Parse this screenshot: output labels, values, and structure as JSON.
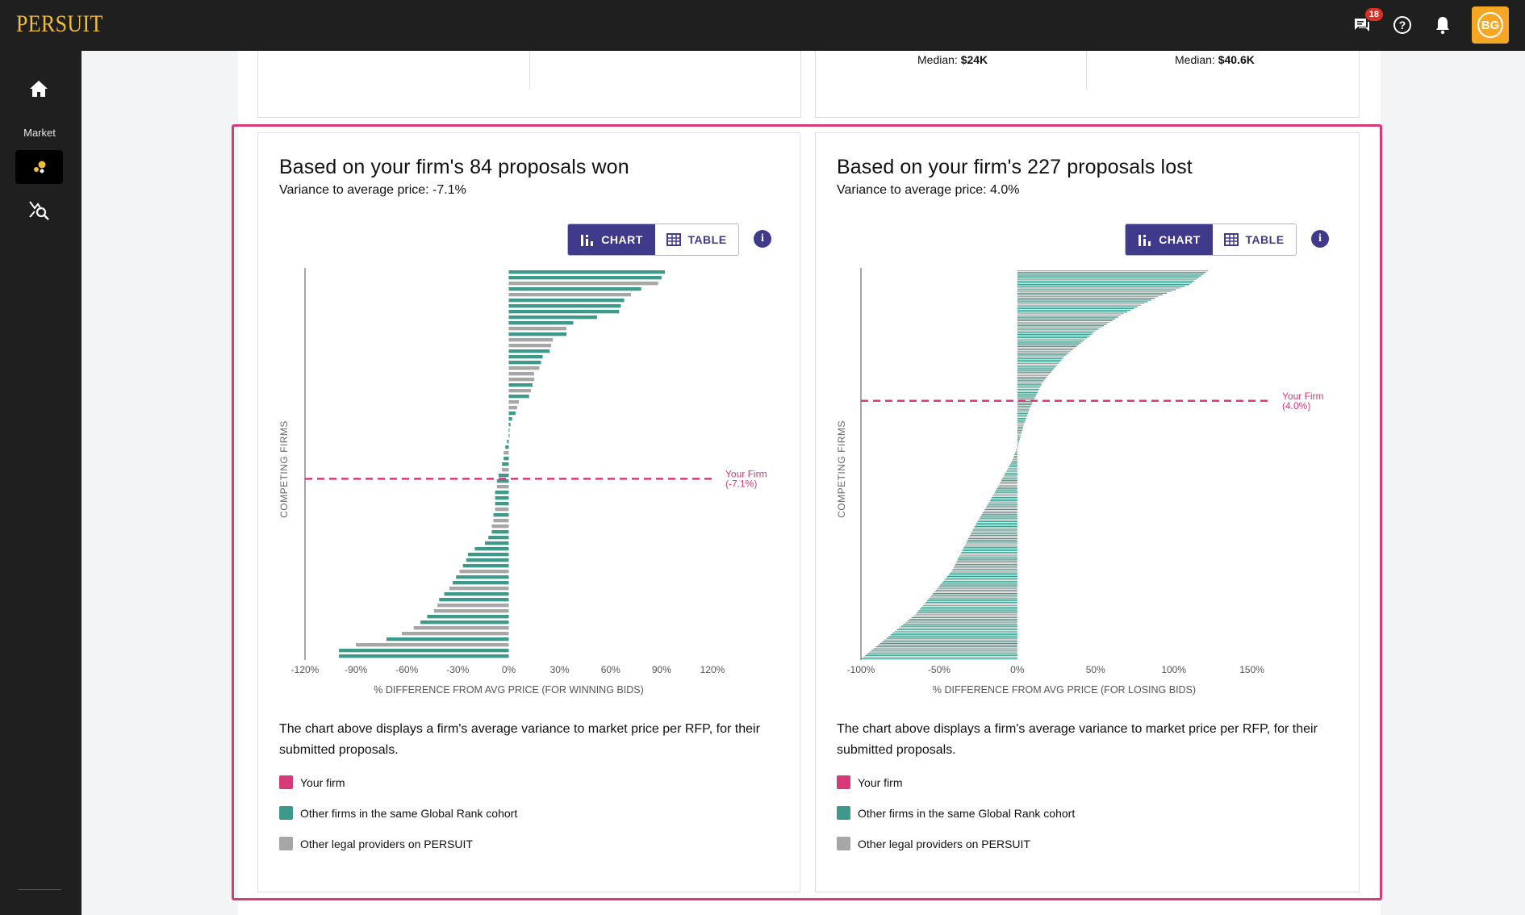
{
  "app": {
    "logo": "PERSUIT",
    "notifications_count": "18",
    "avatar_initials": "BG"
  },
  "sidebar": {
    "market_label": "Market"
  },
  "previous": {
    "median_a_label": "Median:",
    "median_a_value": "$24K",
    "median_b_label": "Median:",
    "median_b_value": "$40.6K"
  },
  "colors": {
    "your_firm": "#d63a78",
    "cohort": "#3d9a8b",
    "other": "#a6a6a6",
    "accent": "#3f3a8c"
  },
  "cards": [
    {
      "title": "Based on your firm's 84 proposals won",
      "subtitle": "Variance to average price: -7.1%",
      "chart_label": "CHART",
      "table_label": "TABLE",
      "ylabel": "COMPETING FIRMS",
      "xlabel": "% DIFFERENCE FROM AVG PRICE (FOR WINNING BIDS)",
      "your_firm_line1": "Your Firm",
      "your_firm_line2": "(-7.1%)",
      "description": "The chart above displays a firm's average variance to market price per RFP, for their submitted proposals.",
      "legend": [
        "Your firm",
        "Other firms in the same Global Rank cohort",
        "Other legal providers on PERSUIT"
      ]
    },
    {
      "title": "Based on your firm's 227 proposals lost",
      "subtitle": "Variance to average price: 4.0%",
      "chart_label": "CHART",
      "table_label": "TABLE",
      "ylabel": "COMPETING FIRMS",
      "xlabel": "% DIFFERENCE FROM AVG PRICE (FOR LOSING BIDS)",
      "your_firm_line1": "Your Firm",
      "your_firm_line2": "(4.0%)",
      "description": "The chart above displays a firm's average variance to market price per RFP, for their submitted proposals.",
      "legend": [
        "Your firm",
        "Other firms in the same Global Rank cohort",
        "Other legal providers on PERSUIT"
      ]
    }
  ],
  "chart_data": [
    {
      "type": "bar",
      "orientation": "horizontal",
      "xlabel": "% DIFFERENCE FROM AVG PRICE (FOR WINNING BIDS)",
      "ylabel": "COMPETING FIRMS",
      "xlim": [
        -120,
        120
      ],
      "xticks": [
        "-120%",
        "-90%",
        "-60%",
        "-30%",
        "0%",
        "30%",
        "60%",
        "90%",
        "120%"
      ],
      "your_firm_value": -7.1,
      "your_firm_label": "Your Firm (-7.1%)",
      "values": [
        92,
        90,
        88,
        78,
        72,
        68,
        66,
        65,
        52,
        38,
        34,
        34,
        26,
        25,
        24,
        20,
        19,
        18,
        15,
        15,
        14,
        13,
        12,
        6,
        5,
        4,
        2,
        1,
        0,
        0,
        -1,
        -2,
        -3,
        -3,
        -4,
        -4,
        -6,
        -7,
        -7,
        -8,
        -8,
        -8,
        -8,
        -9,
        -9,
        -10,
        -10,
        -12,
        -14,
        -20,
        -24,
        -25,
        -27,
        -29,
        -31,
        -33,
        -35,
        -38,
        -41,
        -42,
        -44,
        -48,
        -52,
        -56,
        -63,
        -72,
        -90,
        -100,
        -100
      ],
      "groups": [
        "c",
        "c",
        "o",
        "c",
        "o",
        "c",
        "c",
        "c",
        "c",
        "c",
        "o",
        "c",
        "o",
        "o",
        "c",
        "c",
        "c",
        "o",
        "o",
        "o",
        "c",
        "o",
        "c",
        "o",
        "o",
        "c",
        "c",
        "c",
        "c",
        "c",
        "c",
        "c",
        "o",
        "c",
        "c",
        "o",
        "c",
        "c",
        "o",
        "c",
        "c",
        "c",
        "o",
        "c",
        "o",
        "o",
        "c",
        "c",
        "c",
        "c",
        "c",
        "c",
        "c",
        "o",
        "c",
        "c",
        "o",
        "c",
        "c",
        "o",
        "o",
        "c",
        "c",
        "o",
        "o",
        "c",
        "o",
        "c",
        "c"
      ]
    },
    {
      "type": "bar",
      "orientation": "horizontal",
      "xlabel": "% DIFFERENCE FROM AVG PRICE (FOR LOSING BIDS)",
      "ylabel": "COMPETING FIRMS",
      "xlim": [
        -100,
        160
      ],
      "xticks": [
        "-100%",
        "-50%",
        "0%",
        "50%",
        "100%",
        "150%"
      ],
      "your_firm_value": 4.0,
      "your_firm_label": "Your Firm (4.0%)",
      "series_summary": {
        "count": 227,
        "min": -100,
        "max": 122,
        "curve_points": [
          [
            0,
            122
          ],
          [
            8,
            110
          ],
          [
            15,
            90
          ],
          [
            25,
            68
          ],
          [
            35,
            50
          ],
          [
            50,
            30
          ],
          [
            65,
            16
          ],
          [
            80,
            8
          ],
          [
            90,
            4
          ],
          [
            100,
            1
          ],
          [
            110,
            -3
          ],
          [
            130,
            -15
          ],
          [
            150,
            -28
          ],
          [
            175,
            -42
          ],
          [
            200,
            -65
          ],
          [
            215,
            -85
          ],
          [
            226,
            -100
          ]
        ]
      }
    }
  ]
}
